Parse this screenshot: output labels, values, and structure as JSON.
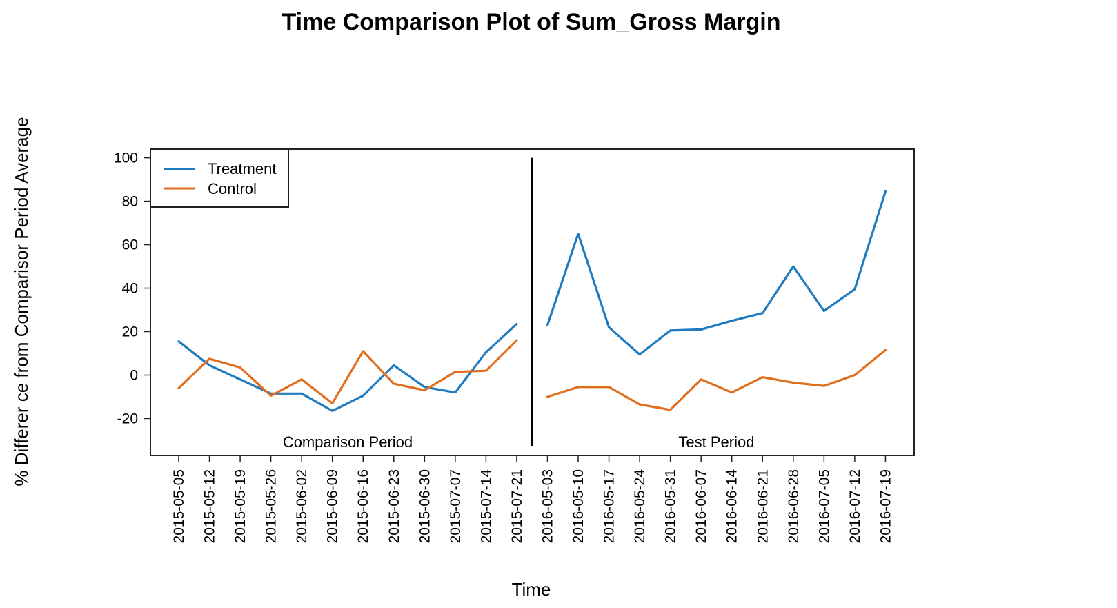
{
  "chart_data": {
    "type": "line",
    "title": "Time Comparison Plot of Sum_Gross Margin",
    "xlabel": "Time",
    "ylabel": "% Differer ce from Comparisor Period Average",
    "ylim": [
      -37,
      104
    ],
    "yticks": [
      -20,
      0,
      20,
      40,
      60,
      80,
      100
    ],
    "categories": [
      "2015-05-05",
      "2015-05-12",
      "2015-05-19",
      "2015-05-26",
      "2015-06-02",
      "2015-06-09",
      "2015-06-16",
      "2015-06-23",
      "2015-06-30",
      "2015-07-07",
      "2015-07-14",
      "2015-07-21",
      "2016-05-03",
      "2016-05-10",
      "2016-05-17",
      "2016-05-24",
      "2016-05-31",
      "2016-06-07",
      "2016-06-14",
      "2016-06-21",
      "2016-06-28",
      "2016-07-05",
      "2016-07-12",
      "2016-07-19"
    ],
    "periods": [
      {
        "label": "Comparison Period",
        "start_index": 0,
        "end_index": 11
      },
      {
        "label": "Test Period",
        "start_index": 12,
        "end_index": 23
      }
    ],
    "series": [
      {
        "name": "Treatment",
        "color": "#1f7bbf",
        "values": [
          15.5,
          4.5,
          -2,
          -8.5,
          -8.5,
          -16.5,
          -9.5,
          4.5,
          -5.5,
          -8,
          10.5,
          23.5,
          23,
          65,
          22,
          9.5,
          20.5,
          21,
          25,
          28.5,
          50,
          29.5,
          39.5,
          84.5
        ]
      },
      {
        "name": "Control",
        "color": "#e06e1e",
        "values": [
          -6,
          7.5,
          3.5,
          -9.5,
          -2,
          -13,
          11,
          -4,
          -7,
          1.5,
          2,
          16,
          -10,
          -5.5,
          -5.5,
          -13.5,
          -16,
          -2,
          -8,
          -1,
          -3.5,
          -5,
          0,
          11.5
        ]
      }
    ],
    "divider_color": "#000000",
    "legend_position": "top-left",
    "grid": false
  }
}
